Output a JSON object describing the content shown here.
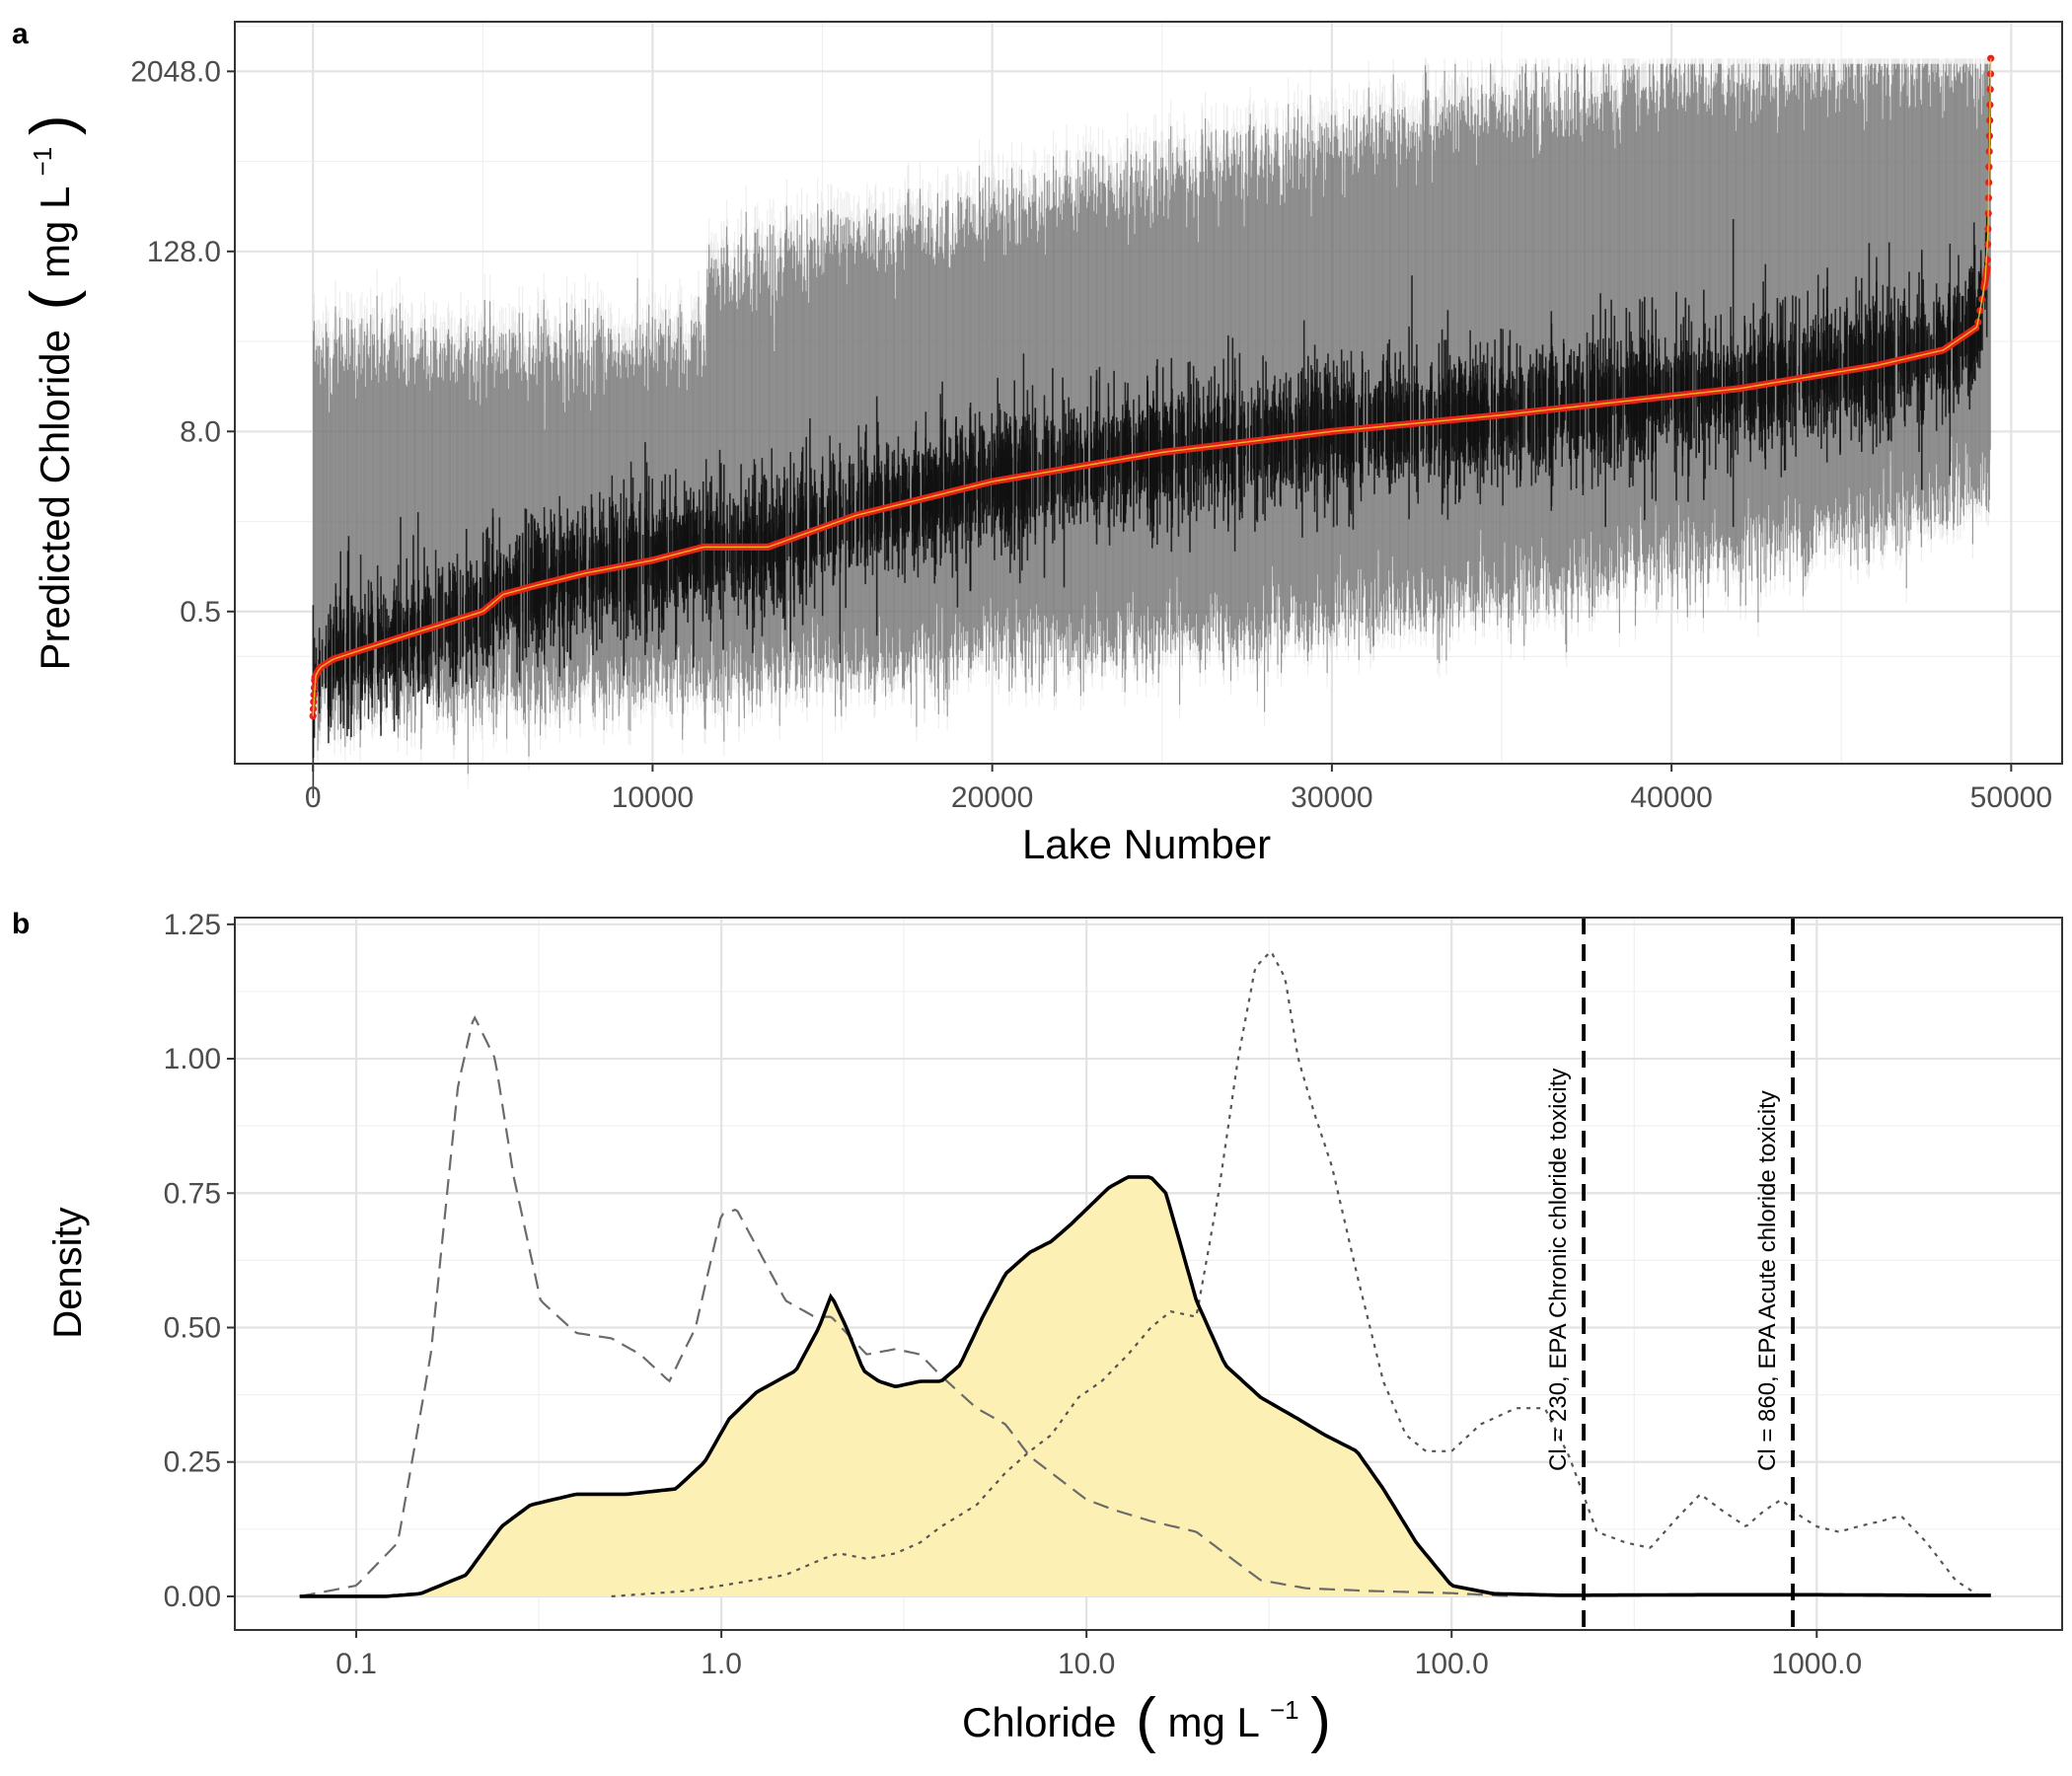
{
  "panels": {
    "a": {
      "label": "a"
    },
    "b": {
      "label": "b"
    }
  },
  "chart_data": [
    {
      "type": "scatter",
      "panel": "a",
      "title": "",
      "xlabel": "Lake Number",
      "ylabel_main": "Predicted Chloride",
      "ylabel_unit": "mg L",
      "ylabel_sup": "−1",
      "y_scale": "log2",
      "xlim": [
        -2300,
        51500
      ],
      "ylim": [
        0.048,
        4400
      ],
      "x_ticks": [
        0,
        10000,
        20000,
        30000,
        40000,
        50000
      ],
      "x_tick_labels": [
        "0",
        "10000",
        "20000",
        "30000",
        "40000",
        "50000"
      ],
      "y_ticks": [
        0.5,
        8,
        128,
        2048
      ],
      "y_tick_labels": [
        "0.5",
        "8.0",
        "128.0",
        "2048.0"
      ],
      "grid": true,
      "n_lakes": 49400,
      "median_curve": {
        "x": [
          0,
          50,
          200,
          600,
          1500,
          3000,
          5000,
          5600,
          6600,
          8000,
          10000,
          11500,
          13400,
          16000,
          20000,
          25000,
          30000,
          35000,
          38000,
          42000,
          46000,
          48000,
          49000,
          49300,
          49400
        ],
        "y": [
          0.1,
          0.18,
          0.21,
          0.24,
          0.28,
          0.36,
          0.5,
          0.65,
          0.75,
          0.9,
          1.1,
          1.35,
          1.35,
          2.2,
          3.7,
          5.8,
          8.0,
          10.3,
          12.3,
          15.5,
          22.0,
          28.0,
          40.0,
          100.0,
          2500.0
        ]
      },
      "interval_lower_curve": {
        "x": [
          0,
          2000,
          5000,
          10000,
          16000,
          20000,
          25000,
          30000,
          35000,
          40000,
          45000,
          48000,
          49400
        ],
        "y": [
          0.12,
          0.13,
          0.14,
          0.17,
          0.21,
          0.27,
          0.33,
          0.45,
          0.65,
          1.0,
          1.8,
          2.7,
          3.5
        ]
      },
      "interval_upper_curve": {
        "x": [
          0,
          11500,
          11600,
          13400,
          16000,
          20000,
          25000,
          30000,
          35000,
          40000,
          45000,
          49400
        ],
        "y": [
          27,
          27,
          90,
          110,
          150,
          220,
          400,
          650,
          1100,
          1600,
          2000,
          2200
        ]
      },
      "colors": {
        "interval": "#6b6b6b",
        "interval_light": "#bdbdbd",
        "lines": "#111111",
        "median_points": "#e3221b",
        "median_core": "#f2c51d"
      }
    },
    {
      "type": "line",
      "panel": "b",
      "title": "",
      "xlabel_main": "Chloride",
      "xlabel_unit": "mg L",
      "xlabel_sup": "−1",
      "ylabel": "Density",
      "x_scale": "log10",
      "xlim": [
        0.0465,
        4700
      ],
      "ylim": [
        -0.0625,
        1.2625
      ],
      "x_ticks": [
        0.1,
        1,
        10,
        100,
        1000
      ],
      "x_tick_labels": [
        "0.1",
        "1.0",
        "10.0",
        "100.0",
        "1000.0"
      ],
      "y_ticks": [
        0,
        0.25,
        0.5,
        0.75,
        1.0,
        1.25
      ],
      "y_tick_labels": [
        "0.00",
        "0.25",
        "0.50",
        "0.75",
        "1.00",
        "1.25"
      ],
      "grid": true,
      "series": [
        {
          "style": "solid-filled",
          "x": [
            0.07,
            0.12,
            0.15,
            0.2,
            0.25,
            0.3,
            0.4,
            0.55,
            0.75,
            0.9,
            1.05,
            1.25,
            1.6,
            1.85,
            2.0,
            2.2,
            2.45,
            2.7,
            3.0,
            3.5,
            4.0,
            4.5,
            5.2,
            6.0,
            7.0,
            8.0,
            9.0,
            10.0,
            11.5,
            13.0,
            15.0,
            16.5,
            18.0,
            20.0,
            24.0,
            30.0,
            38.0,
            45.0,
            55.0,
            65.0,
            80.0,
            100.0,
            130.0,
            200.0,
            500.0,
            1000.0,
            2000.0,
            3000.0
          ],
          "y": [
            0.0,
            0.0,
            0.005,
            0.04,
            0.13,
            0.17,
            0.19,
            0.19,
            0.2,
            0.25,
            0.33,
            0.38,
            0.42,
            0.5,
            0.56,
            0.5,
            0.42,
            0.4,
            0.39,
            0.4,
            0.4,
            0.43,
            0.52,
            0.6,
            0.64,
            0.66,
            0.69,
            0.72,
            0.76,
            0.78,
            0.78,
            0.75,
            0.66,
            0.55,
            0.43,
            0.37,
            0.33,
            0.3,
            0.27,
            0.2,
            0.1,
            0.02,
            0.005,
            0.002,
            0.003,
            0.003,
            0.002,
            0.002
          ],
          "color": "#000000",
          "fill": "#fdf0b4"
        },
        {
          "style": "dashed",
          "x": [
            0.07,
            0.1,
            0.13,
            0.16,
            0.19,
            0.21,
            0.24,
            0.27,
            0.32,
            0.4,
            0.5,
            0.6,
            0.72,
            0.85,
            1.0,
            1.1,
            1.25,
            1.5,
            1.8,
            2.0,
            2.5,
            3.0,
            3.5,
            4.0,
            5.0,
            6.0,
            7.0,
            8.0,
            10.0,
            12.0,
            15.0,
            20.0,
            25.0,
            30.0,
            40.0,
            60.0,
            100.0,
            150.0
          ],
          "y": [
            0.0,
            0.02,
            0.1,
            0.45,
            0.95,
            1.08,
            1.0,
            0.78,
            0.55,
            0.49,
            0.48,
            0.45,
            0.4,
            0.5,
            0.71,
            0.72,
            0.65,
            0.55,
            0.52,
            0.52,
            0.45,
            0.46,
            0.45,
            0.41,
            0.35,
            0.32,
            0.26,
            0.23,
            0.18,
            0.16,
            0.14,
            0.12,
            0.07,
            0.03,
            0.015,
            0.01,
            0.006,
            0.0
          ],
          "color": "#6b6b6b"
        },
        {
          "style": "dotted",
          "x": [
            0.5,
            0.8,
            1.0,
            1.5,
            1.9,
            2.1,
            2.5,
            3.0,
            3.5,
            4.0,
            5.0,
            6.0,
            7.0,
            8.0,
            9.5,
            11.0,
            13.0,
            15.0,
            17.0,
            20.0,
            23.0,
            26.0,
            29.0,
            32.0,
            35.0,
            38.0,
            42.0,
            47.0,
            55.0,
            65.0,
            75.0,
            85.0,
            100.0,
            120.0,
            150.0,
            180.0,
            210.0,
            250.0,
            300.0,
            350.0,
            420.0,
            480.0,
            550.0,
            640.0,
            720.0,
            800.0,
            900.0,
            1000.0,
            1150.0,
            1300.0,
            1500.0,
            1700.0,
            2000.0,
            2400.0,
            2800.0
          ],
          "y": [
            0.0,
            0.01,
            0.02,
            0.04,
            0.07,
            0.08,
            0.07,
            0.08,
            0.1,
            0.13,
            0.17,
            0.23,
            0.27,
            0.3,
            0.37,
            0.4,
            0.45,
            0.5,
            0.53,
            0.52,
            0.75,
            1.0,
            1.17,
            1.2,
            1.15,
            1.0,
            0.9,
            0.8,
            0.6,
            0.4,
            0.3,
            0.27,
            0.27,
            0.32,
            0.35,
            0.35,
            0.26,
            0.12,
            0.1,
            0.09,
            0.15,
            0.19,
            0.16,
            0.13,
            0.16,
            0.18,
            0.15,
            0.13,
            0.12,
            0.13,
            0.14,
            0.15,
            0.1,
            0.03,
            0.0
          ],
          "color": "#555555"
        }
      ],
      "reference_lines": [
        {
          "x": 230,
          "label": "Cl = 230, EPA Chronic chloride toxicity"
        },
        {
          "x": 860,
          "label": "Cl = 860, EPA Acute chloride toxicity"
        }
      ]
    }
  ]
}
